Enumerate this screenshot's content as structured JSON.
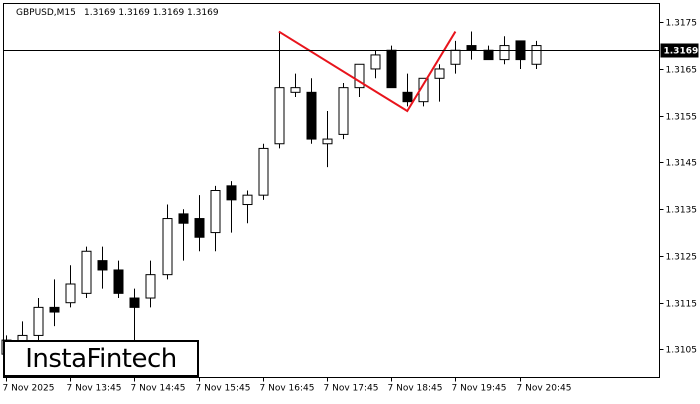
{
  "header": {
    "symbol_timeframe": "GBPUSD,M15",
    "ohlc": "1.3169 1.3169 1.3169 1.3169"
  },
  "logo": {
    "text": "InstaFintech"
  },
  "current_price": {
    "label": "1.3169",
    "value": 1.3169
  },
  "colors": {
    "background": "#ffffff",
    "candle": "#000000",
    "pattern_line": "#e8141c",
    "price_line": "#000000"
  },
  "chart_data": {
    "type": "candlestick",
    "ylim": [
      1.3099,
      1.3179
    ],
    "y_ticks": [
      {
        "label": "1.3175",
        "value": 1.3175
      },
      {
        "label": "1.3165",
        "value": 1.3165
      },
      {
        "label": "1.3155",
        "value": 1.3155
      },
      {
        "label": "1.3145",
        "value": 1.3145
      },
      {
        "label": "1.3135",
        "value": 1.3135
      },
      {
        "label": "1.3125",
        "value": 1.3125
      },
      {
        "label": "1.3115",
        "value": 1.3115
      },
      {
        "label": "1.3105",
        "value": 1.3105
      }
    ],
    "x_ticks": [
      {
        "label": "7 Nov 2025",
        "index": 0
      },
      {
        "label": "7 Nov 13:45",
        "index": 4
      },
      {
        "label": "7 Nov 14:45",
        "index": 8
      },
      {
        "label": "7 Nov 15:45",
        "index": 12
      },
      {
        "label": "7 Nov 16:45",
        "index": 16
      },
      {
        "label": "7 Nov 17:45",
        "index": 20
      },
      {
        "label": "7 Nov 18:45",
        "index": 24
      },
      {
        "label": "7 Nov 19:45",
        "index": 28
      },
      {
        "label": "7 Nov 20:45",
        "index": 32
      }
    ],
    "candles": [
      {
        "o": 1.3104,
        "h": 1.3108,
        "l": 1.3099,
        "c": 1.3107
      },
      {
        "o": 1.3106,
        "h": 1.3111,
        "l": 1.3102,
        "c": 1.3108
      },
      {
        "o": 1.3108,
        "h": 1.3116,
        "l": 1.3104,
        "c": 1.3114
      },
      {
        "o": 1.3114,
        "h": 1.312,
        "l": 1.311,
        "c": 1.3113
      },
      {
        "o": 1.3115,
        "h": 1.3123,
        "l": 1.3114,
        "c": 1.3119
      },
      {
        "o": 1.3117,
        "h": 1.3127,
        "l": 1.3116,
        "c": 1.3126
      },
      {
        "o": 1.3124,
        "h": 1.3127,
        "l": 1.3118,
        "c": 1.3122
      },
      {
        "o": 1.3122,
        "h": 1.3124,
        "l": 1.3116,
        "c": 1.3117
      },
      {
        "o": 1.3116,
        "h": 1.3118,
        "l": 1.3107,
        "c": 1.3114
      },
      {
        "o": 1.3116,
        "h": 1.3124,
        "l": 1.3114,
        "c": 1.3121
      },
      {
        "o": 1.3121,
        "h": 1.3136,
        "l": 1.312,
        "c": 1.3133
      },
      {
        "o": 1.3134,
        "h": 1.3135,
        "l": 1.3124,
        "c": 1.3132
      },
      {
        "o": 1.3133,
        "h": 1.3138,
        "l": 1.3126,
        "c": 1.3129
      },
      {
        "o": 1.313,
        "h": 1.314,
        "l": 1.3126,
        "c": 1.3139
      },
      {
        "o": 1.314,
        "h": 1.3141,
        "l": 1.313,
        "c": 1.3137
      },
      {
        "o": 1.3136,
        "h": 1.3139,
        "l": 1.3132,
        "c": 1.3138
      },
      {
        "o": 1.3138,
        "h": 1.3149,
        "l": 1.3137,
        "c": 1.3148
      },
      {
        "o": 1.3149,
        "h": 1.3173,
        "l": 1.3148,
        "c": 1.3161
      },
      {
        "o": 1.316,
        "h": 1.3164,
        "l": 1.3159,
        "c": 1.3161
      },
      {
        "o": 1.316,
        "h": 1.3163,
        "l": 1.3149,
        "c": 1.315
      },
      {
        "o": 1.3149,
        "h": 1.3156,
        "l": 1.3144,
        "c": 1.315
      },
      {
        "o": 1.3151,
        "h": 1.3162,
        "l": 1.315,
        "c": 1.3161
      },
      {
        "o": 1.3161,
        "h": 1.3166,
        "l": 1.3159,
        "c": 1.3166
      },
      {
        "o": 1.3165,
        "h": 1.3169,
        "l": 1.3163,
        "c": 1.3168
      },
      {
        "o": 1.3169,
        "h": 1.317,
        "l": 1.3161,
        "c": 1.3161
      },
      {
        "o": 1.316,
        "h": 1.3164,
        "l": 1.3157,
        "c": 1.3158
      },
      {
        "o": 1.3158,
        "h": 1.3163,
        "l": 1.3157,
        "c": 1.3163
      },
      {
        "o": 1.3163,
        "h": 1.3166,
        "l": 1.3158,
        "c": 1.3165
      },
      {
        "o": 1.3166,
        "h": 1.3171,
        "l": 1.3164,
        "c": 1.3169
      },
      {
        "o": 1.317,
        "h": 1.3173,
        "l": 1.3167,
        "c": 1.3169
      },
      {
        "o": 1.3169,
        "h": 1.317,
        "l": 1.3167,
        "c": 1.3167
      },
      {
        "o": 1.3167,
        "h": 1.3172,
        "l": 1.3166,
        "c": 1.317
      },
      {
        "o": 1.3171,
        "h": 1.3171,
        "l": 1.3165,
        "c": 1.3167
      },
      {
        "o": 1.3166,
        "h": 1.3171,
        "l": 1.3165,
        "c": 1.317
      }
    ],
    "pattern_line": [
      {
        "index": 17,
        "price": 1.3173
      },
      {
        "index": 25,
        "price": 1.3156
      },
      {
        "index": 28,
        "price": 1.3173
      }
    ]
  }
}
